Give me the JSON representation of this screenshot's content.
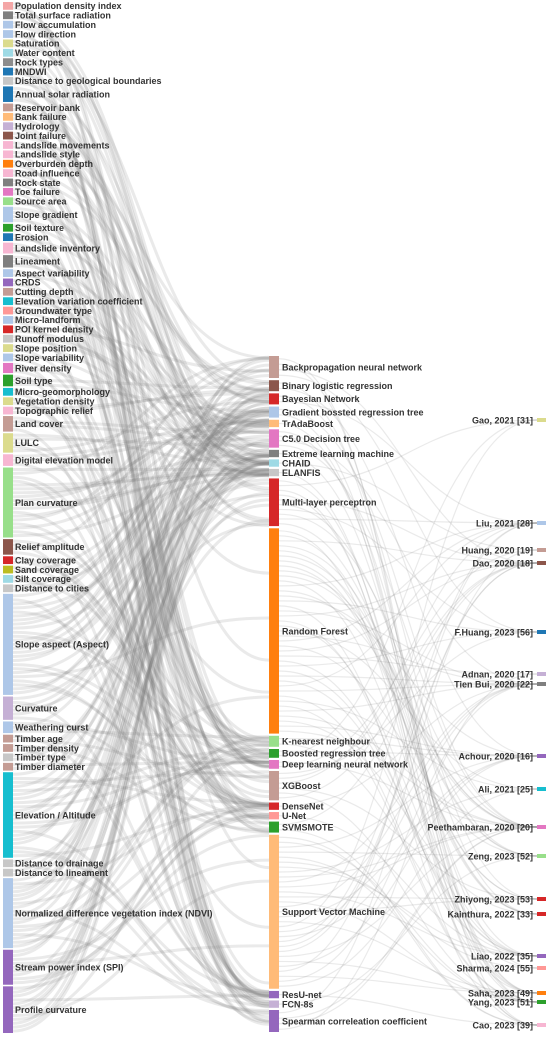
{
  "diagram": {
    "type": "sankey",
    "columns": {
      "factors": [
        {
          "label": "Population density index",
          "color": "#f4a6a6",
          "weight": 1
        },
        {
          "label": "Total surface radiation",
          "color": "#7f7f7f",
          "weight": 1
        },
        {
          "label": "Flow accumulation",
          "color": "#aec7e8",
          "weight": 1
        },
        {
          "label": "Flow direction",
          "color": "#aec7e8",
          "weight": 1
        },
        {
          "label": "Saturation",
          "color": "#dbdb8d",
          "weight": 1
        },
        {
          "label": "Water content",
          "color": "#9edae5",
          "weight": 1
        },
        {
          "label": "Rock types",
          "color": "#8c8c8c",
          "weight": 1
        },
        {
          "label": "MNDWI",
          "color": "#1f77b4",
          "weight": 1
        },
        {
          "label": "Distance to geological boundaries",
          "color": "#c7c7c7",
          "weight": 1
        },
        {
          "label": "Annual solar radiation",
          "color": "#1f77b4",
          "weight": 2
        },
        {
          "label": "Reservoir bank",
          "color": "#c49c94",
          "weight": 1
        },
        {
          "label": "Bank failure",
          "color": "#ffbb78",
          "weight": 1
        },
        {
          "label": "Hydrology",
          "color": "#c5b0d5",
          "weight": 1
        },
        {
          "label": "Joint failure",
          "color": "#8c564b",
          "weight": 1
        },
        {
          "label": "Landslide movements",
          "color": "#f7b6d2",
          "weight": 1
        },
        {
          "label": "Landslide style",
          "color": "#f7b6d2",
          "weight": 1
        },
        {
          "label": "Overburden depth",
          "color": "#ff7f0e",
          "weight": 1
        },
        {
          "label": "Road influence",
          "color": "#f7b6d2",
          "weight": 1
        },
        {
          "label": "Rock state",
          "color": "#7f7f7f",
          "weight": 1
        },
        {
          "label": "Toe failure",
          "color": "#e377c2",
          "weight": 1
        },
        {
          "label": "Source area",
          "color": "#98df8a",
          "weight": 1
        },
        {
          "label": "Slope gradient",
          "color": "#aec7e8",
          "weight": 2
        },
        {
          "label": "Soil texture",
          "color": "#2ca02c",
          "weight": 1
        },
        {
          "label": "Erosion",
          "color": "#1f77b4",
          "weight": 1
        },
        {
          "label": "Landslide inventory",
          "color": "#f7b6d2",
          "weight": 1.4
        },
        {
          "label": "Lineament",
          "color": "#7f7f7f",
          "weight": 1.6
        },
        {
          "label": "Aspect variability",
          "color": "#aec7e8",
          "weight": 1
        },
        {
          "label": "CRDS",
          "color": "#9467bd",
          "weight": 1
        },
        {
          "label": "Cutting depth",
          "color": "#c49c94",
          "weight": 1
        },
        {
          "label": "Elevation variation coefficient",
          "color": "#17becf",
          "weight": 1
        },
        {
          "label": "Groundwater type",
          "color": "#ff9896",
          "weight": 1
        },
        {
          "label": "Micro-landform",
          "color": "#aec7e8",
          "weight": 1
        },
        {
          "label": "POI kernel density",
          "color": "#d62728",
          "weight": 1
        },
        {
          "label": "Runoff modulus",
          "color": "#c7c7c7",
          "weight": 1
        },
        {
          "label": "Slope position",
          "color": "#dbdb8d",
          "weight": 1
        },
        {
          "label": "Slope variability",
          "color": "#aec7e8",
          "weight": 1
        },
        {
          "label": "River density",
          "color": "#e377c2",
          "weight": 1.3
        },
        {
          "label": "Soil type",
          "color": "#2ca02c",
          "weight": 1.5
        },
        {
          "label": "Micro-geomorphology",
          "color": "#17becf",
          "weight": 1
        },
        {
          "label": "Vegetation density",
          "color": "#dbdb8d",
          "weight": 1
        },
        {
          "label": "Topographic relief",
          "color": "#f7b6d2",
          "weight": 1
        },
        {
          "label": "Land cover",
          "color": "#c49c94",
          "weight": 2
        },
        {
          "label": "LULC",
          "color": "#dbdb8d",
          "weight": 2.5
        },
        {
          "label": "Digital elevation model",
          "color": "#f7b6d2",
          "weight": 1.5
        },
        {
          "label": "Plan curvature",
          "color": "#98df8a",
          "weight": 9
        },
        {
          "label": "Relief amplitude",
          "color": "#8c564b",
          "weight": 2
        },
        {
          "label": "Clay coverage",
          "color": "#d62728",
          "weight": 1
        },
        {
          "label": "Sand coverage",
          "color": "#bcbd22",
          "weight": 1
        },
        {
          "label": "Silt coverage",
          "color": "#9edae5",
          "weight": 1
        },
        {
          "label": "Distance to cities",
          "color": "#c7c7c7",
          "weight": 1
        },
        {
          "label": "Slope aspect (Aspect)",
          "color": "#aec7e8",
          "weight": 13
        },
        {
          "label": "Curvature",
          "color": "#c5b0d5",
          "weight": 3
        },
        {
          "label": "Weathering curst",
          "color": "#aec7e8",
          "weight": 1.5
        },
        {
          "label": "Timber age",
          "color": "#c49c94",
          "weight": 1
        },
        {
          "label": "Timber density",
          "color": "#c49c94",
          "weight": 1
        },
        {
          "label": "Timber type",
          "color": "#c7c7c7",
          "weight": 1
        },
        {
          "label": "Timber diameter",
          "color": "#c49c94",
          "weight": 1
        },
        {
          "label": "Elevation / Altitude",
          "color": "#17becf",
          "weight": 11
        },
        {
          "label": "Distance to drainage",
          "color": "#c7c7c7",
          "weight": 1
        },
        {
          "label": "Distance to lineament",
          "color": "#c7c7c7",
          "weight": 1
        },
        {
          "label": "Normalized difference vegetation index (NDVI)",
          "color": "#aec7e8",
          "weight": 9
        },
        {
          "label": "Stream power index (SPI)",
          "color": "#9467bd",
          "weight": 4.5
        },
        {
          "label": "Profile curvature",
          "color": "#9467bd",
          "weight": 6
        }
      ],
      "methods": [
        {
          "label": "Backpropagation neural network",
          "color": "#c49c94",
          "weight": 3
        },
        {
          "label": "Binary logistic regression",
          "color": "#8c564b",
          "weight": 1.5
        },
        {
          "label": "Bayesian Network",
          "color": "#d62728",
          "weight": 1.5
        },
        {
          "label": "Gradient bossted regression tree",
          "color": "#aec7e8",
          "weight": 1.5
        },
        {
          "label": "TrAdaBoost",
          "color": "#ffbb78",
          "weight": 1
        },
        {
          "label": "C5.0 Decision tree",
          "color": "#e377c2",
          "weight": 2.5
        },
        {
          "label": "Extreme learning machine",
          "color": "#7f7f7f",
          "weight": 1
        },
        {
          "label": "CHAID",
          "color": "#9edae5",
          "weight": 1
        },
        {
          "label": "ELANFIS",
          "color": "#c7c7c7",
          "weight": 1
        },
        {
          "label": "Multi-layer perceptron",
          "color": "#d62728",
          "weight": 6.5
        },
        {
          "label": "Random Forest",
          "color": "#ff7f0e",
          "weight": 28
        },
        {
          "label": "K-nearest neighbour",
          "color": "#98df8a",
          "weight": 1.5
        },
        {
          "label": "Boosted regression tree",
          "color": "#2ca02c",
          "weight": 1.2
        },
        {
          "label": "Deep learning neural network",
          "color": "#e377c2",
          "weight": 1.2
        },
        {
          "label": "XGBoost",
          "color": "#c49c94",
          "weight": 4
        },
        {
          "label": "DenseNet",
          "color": "#d62728",
          "weight": 1
        },
        {
          "label": "U-Net",
          "color": "#ff9896",
          "weight": 1
        },
        {
          "label": "SVMSMOTE",
          "color": "#2ca02c",
          "weight": 1.5
        },
        {
          "label": "Support Vector Machine",
          "color": "#ffbb78",
          "weight": 21
        },
        {
          "label": "ResU-net",
          "color": "#9467bd",
          "weight": 1
        },
        {
          "label": "FCN-8s",
          "color": "#c5b0d5",
          "weight": 1
        },
        {
          "label": "Spearman correleation coefficient",
          "color": "#9467bd",
          "weight": 3
        }
      ],
      "studies": [
        {
          "label": "Gao, 2021 [31]",
          "color": "#dbdb8d"
        },
        {
          "label": "Liu, 2021 [28]",
          "color": "#aec7e8"
        },
        {
          "label": "Huang, 2020 [19]",
          "color": "#c49c94"
        },
        {
          "label": "Dao, 2020 [18]",
          "color": "#8c564b"
        },
        {
          "label": "F.Huang, 2023 [56]",
          "color": "#1f77b4"
        },
        {
          "label": "Adnan, 2020 [17]",
          "color": "#c5b0d5"
        },
        {
          "label": "Tien Bui, 2020 [22]",
          "color": "#7f7f7f"
        },
        {
          "label": "Achour, 2020 [16]",
          "color": "#9467bd"
        },
        {
          "label": "Ali, 2021 [25]",
          "color": "#17becf"
        },
        {
          "label": "Peethambaran, 2020 [20]",
          "color": "#e377c2"
        },
        {
          "label": "Zeng, 2023 [52]",
          "color": "#98df8a"
        },
        {
          "label": "Zhiyong, 2023 [53]",
          "color": "#d62728"
        },
        {
          "label": "Kainthura, 2022 [33]",
          "color": "#d62728"
        },
        {
          "label": "Liao, 2022 [35]",
          "color": "#9467bd"
        },
        {
          "label": "Sharma, 2024 [55]",
          "color": "#ff9896"
        },
        {
          "label": "Saha, 2023 [49]",
          "color": "#ff7f0e"
        },
        {
          "label": "Yang, 2023 [51]",
          "color": "#2ca02c"
        },
        {
          "label": "Cao, 2023 [39]",
          "color": "#f7b6d2"
        }
      ]
    }
  }
}
